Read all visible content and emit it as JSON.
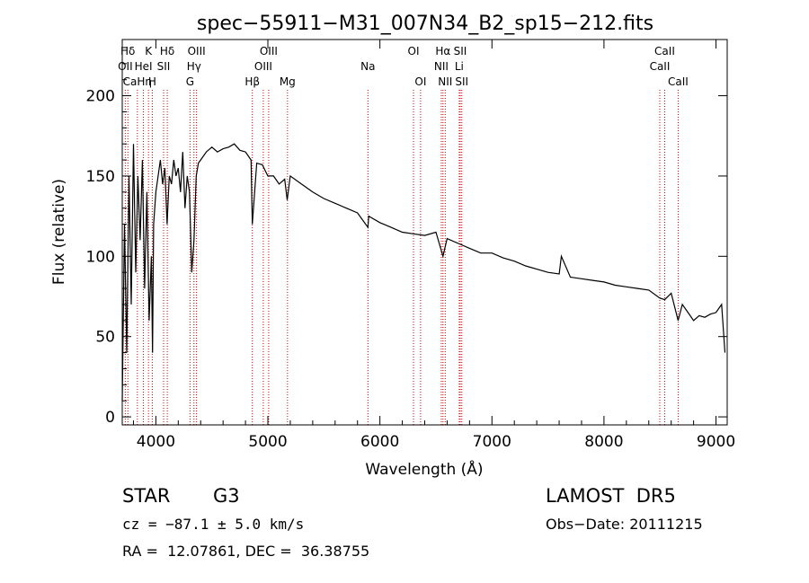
{
  "chart_data": {
    "type": "line",
    "title": "spec−55911−M31_007N34_B2_sp15−212.fits",
    "xlabel": "Wavelength (Å)",
    "ylabel": "Flux (relative)",
    "xlim": [
      3700,
      9100
    ],
    "ylim": [
      -5,
      235
    ],
    "x_ticks": [
      4000,
      5000,
      6000,
      7000,
      8000,
      9000
    ],
    "y_ticks": [
      0,
      50,
      100,
      150,
      200
    ],
    "grid": false,
    "series": [
      {
        "color": "#000000",
        "x": [
          3700,
          3720,
          3740,
          3760,
          3780,
          3800,
          3820,
          3840,
          3860,
          3880,
          3900,
          3920,
          3940,
          3960,
          3970,
          3980,
          4000,
          4020,
          4040,
          4060,
          4080,
          4100,
          4120,
          4140,
          4160,
          4180,
          4200,
          4220,
          4240,
          4260,
          4280,
          4300,
          4320,
          4340,
          4360,
          4380,
          4400,
          4450,
          4500,
          4550,
          4600,
          4650,
          4700,
          4750,
          4800,
          4850,
          4861,
          4900,
          4950,
          5000,
          5050,
          5100,
          5150,
          5172,
          5200,
          5300,
          5400,
          5500,
          5600,
          5700,
          5800,
          5893,
          5900,
          6000,
          6100,
          6200,
          6300,
          6400,
          6500,
          6563,
          6600,
          6700,
          6800,
          6900,
          7000,
          7100,
          7200,
          7300,
          7400,
          7500,
          7600,
          7620,
          7700,
          7800,
          7900,
          8000,
          8100,
          8200,
          8300,
          8400,
          8498,
          8542,
          8600,
          8662,
          8700,
          8750,
          8800,
          8850,
          8900,
          8950,
          9000,
          9050,
          9080
        ],
        "y": [
          10,
          120,
          40,
          150,
          70,
          170,
          90,
          150,
          110,
          160,
          80,
          140,
          60,
          100,
          40,
          120,
          140,
          150,
          160,
          145,
          155,
          120,
          150,
          145,
          160,
          150,
          155,
          140,
          165,
          130,
          150,
          140,
          90,
          110,
          150,
          158,
          160,
          165,
          168,
          165,
          167,
          168,
          170,
          166,
          165,
          160,
          120,
          158,
          157,
          150,
          150,
          145,
          148,
          135,
          150,
          145,
          140,
          136,
          133,
          130,
          127,
          118,
          125,
          121,
          118,
          115,
          114,
          113,
          115,
          100,
          111,
          108,
          105,
          102,
          102,
          99,
          97,
          94,
          92,
          90,
          89,
          100,
          87,
          86,
          85,
          84,
          82,
          81,
          80,
          79,
          74,
          73,
          77,
          60,
          70,
          65,
          60,
          63,
          62,
          64,
          65,
          70,
          40
        ]
      }
    ],
    "lines": [
      {
        "label": "Hδ",
        "x": 3750,
        "row": 0
      },
      {
        "label": "K",
        "x": 3934,
        "row": 0
      },
      {
        "label": "Hδ",
        "x": 4102,
        "row": 0
      },
      {
        "label": "OIII",
        "x": 4363,
        "row": 0
      },
      {
        "label": "OIII",
        "x": 5007,
        "row": 0
      },
      {
        "label": "OI",
        "x": 6300,
        "row": 0
      },
      {
        "label": "Hα",
        "x": 6563,
        "row": 0
      },
      {
        "label": "SII",
        "x": 6717,
        "row": 0
      },
      {
        "label": "CaII",
        "x": 8542,
        "row": 0
      },
      {
        "label": "OII",
        "x": 3727,
        "row": 1
      },
      {
        "label": "HeI",
        "x": 3889,
        "row": 1
      },
      {
        "label": "SII",
        "x": 4069,
        "row": 1
      },
      {
        "label": "Hγ",
        "x": 4340,
        "row": 1
      },
      {
        "label": "OIII",
        "x": 4959,
        "row": 1
      },
      {
        "label": "Na",
        "x": 5893,
        "row": 1
      },
      {
        "label": "NII",
        "x": 6548,
        "row": 1
      },
      {
        "label": "Li",
        "x": 6708,
        "row": 1
      },
      {
        "label": "CaII",
        "x": 8498,
        "row": 1
      },
      {
        "label": "CaHη",
        "x": 3835,
        "row": 2
      },
      {
        "label": "H",
        "x": 3968,
        "row": 2
      },
      {
        "label": "G",
        "x": 4305,
        "row": 2
      },
      {
        "label": "Hβ",
        "x": 4861,
        "row": 2
      },
      {
        "label": "Mg",
        "x": 5175,
        "row": 2
      },
      {
        "label": "OI",
        "x": 6363,
        "row": 2
      },
      {
        "label": "NII",
        "x": 6583,
        "row": 2
      },
      {
        "label": "SII",
        "x": 6731,
        "row": 2
      },
      {
        "label": "CaII",
        "x": 8662,
        "row": 2
      }
    ],
    "line_color": "#cc0000"
  },
  "info": {
    "class": "STAR",
    "subclass": "G3",
    "survey": "LAMOST  DR5",
    "cz": "cz = −87.1 ± 5.0 km/s",
    "obsdate": "Obs−Date: 20111215",
    "radec": "RA =  12.07861, DEC =  36.38755"
  }
}
